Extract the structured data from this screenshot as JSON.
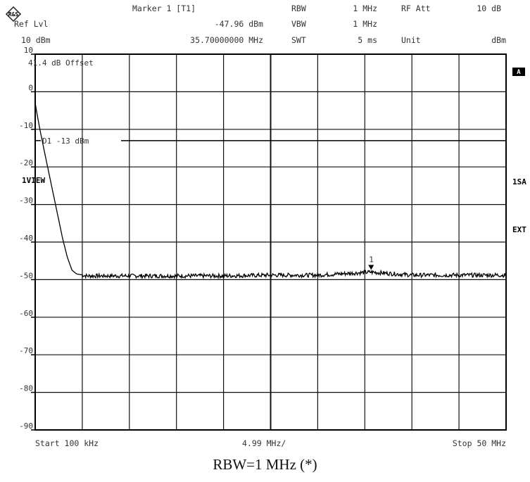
{
  "header": {
    "logo_text": "R&S",
    "marker_title": "Marker 1 [T1]",
    "marker_level": "-47.96 dBm",
    "marker_freq": "35.70000000 MHz",
    "ref_lvl_label": "Ref Lvl",
    "ref_lvl_value": "10 dBm",
    "rbw_label": "RBW",
    "rbw_value": "1 MHz",
    "vbw_label": "VBW",
    "vbw_value": "1 MHz",
    "swt_label": "SWT",
    "swt_value": "5 ms",
    "rfatt_label": "RF Att",
    "rfatt_value": "10 dB",
    "unit_label": "Unit",
    "unit_value": "dBm"
  },
  "annotations": {
    "offset": "41.4 dB Offset",
    "limit_line": "D1 -13 dBm",
    "trace_mode": "1VIEW",
    "marker_number": "1",
    "right_a": "A",
    "right_1sa": "1SA",
    "right_ext": "EXT"
  },
  "footer": {
    "start": "Start 100 kHz",
    "per_div": "4.99 MHz/",
    "stop": "Stop 50 MHz"
  },
  "caption": "RBW=1 MHz (*)",
  "chart_data": {
    "type": "line",
    "xlabel": "",
    "ylabel": "",
    "xlim": [
      0.1,
      50
    ],
    "ylim": [
      -90,
      10
    ],
    "y_ticks": [
      10,
      0,
      -10,
      -20,
      -30,
      -40,
      -50,
      -60,
      -70,
      -80,
      -90
    ],
    "grid": true,
    "x_divisions": 10,
    "y_divisions": 10,
    "limit_line_dbm": -13,
    "marker": {
      "x": 35.7,
      "y": -47.96,
      "label": "1"
    },
    "series": [
      {
        "name": "",
        "x": [
          0.1,
          0.3,
          0.6,
          1.0,
          1.5,
          2.0,
          2.5,
          3.0,
          3.5,
          4.0,
          4.5,
          5.0,
          5.5,
          6.0,
          7.0,
          10.0,
          15.0,
          20.0,
          25.0,
          30.0,
          35.7,
          40.0,
          45.0,
          50.0
        ],
        "y": [
          -3,
          -6,
          -10,
          -15,
          -21,
          -27,
          -33,
          -39,
          -44,
          -47.5,
          -48.5,
          -48.7,
          -49,
          -49,
          -49,
          -49,
          -49,
          -49,
          -48.8,
          -48.8,
          -48,
          -48.8,
          -48.8,
          -48.8
        ]
      }
    ]
  }
}
